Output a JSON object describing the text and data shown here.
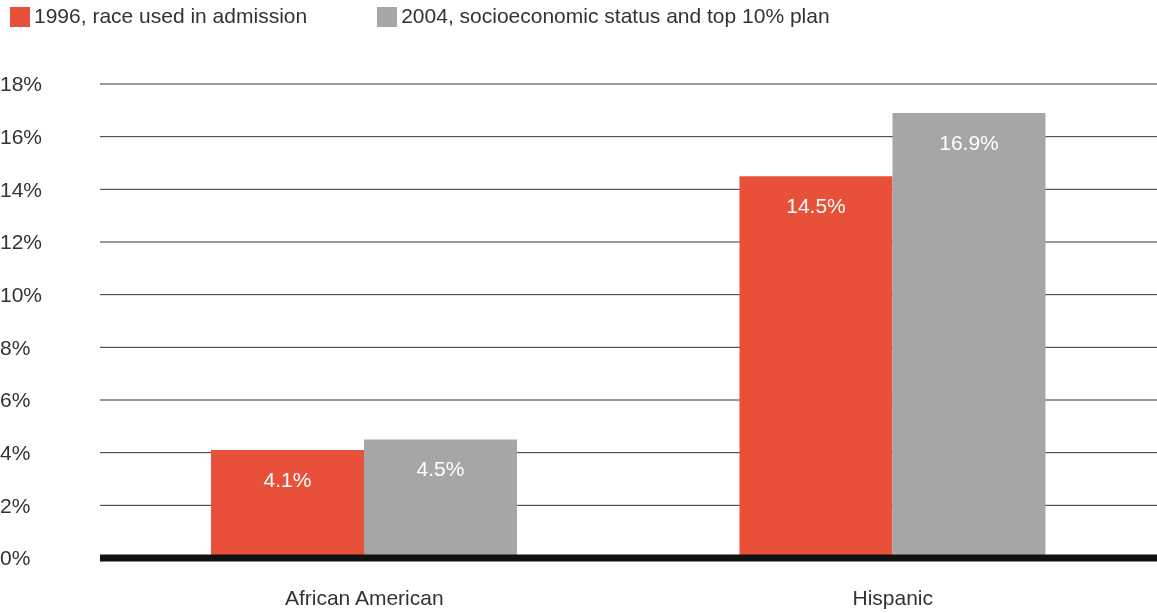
{
  "chart_data": {
    "type": "bar",
    "categories": [
      "African American",
      "Hispanic"
    ],
    "series": [
      {
        "name": "1996, race used in admission",
        "color": "#e8503a",
        "values": [
          4.1,
          14.5
        ],
        "value_labels": [
          "4.1%",
          "14.5%"
        ]
      },
      {
        "name": "2004, socioeconomic status and top 10% plan",
        "color": "#a6a6a6",
        "values": [
          4.5,
          16.9
        ],
        "value_labels": [
          "4.5%",
          "16.9%"
        ]
      }
    ],
    "ylim": [
      0,
      18
    ],
    "yticks": [
      {
        "value": 0,
        "label": "0%"
      },
      {
        "value": 2,
        "label": "2%"
      },
      {
        "value": 4,
        "label": "4%"
      },
      {
        "value": 6,
        "label": "6%"
      },
      {
        "value": 8,
        "label": "8%"
      },
      {
        "value": 10,
        "label": "10%"
      },
      {
        "value": 12,
        "label": "12%"
      },
      {
        "value": 14,
        "label": "14%"
      },
      {
        "value": 16,
        "label": "16%"
      },
      {
        "value": 18,
        "label": "18%"
      }
    ],
    "grid": "y",
    "legend": "top left"
  }
}
